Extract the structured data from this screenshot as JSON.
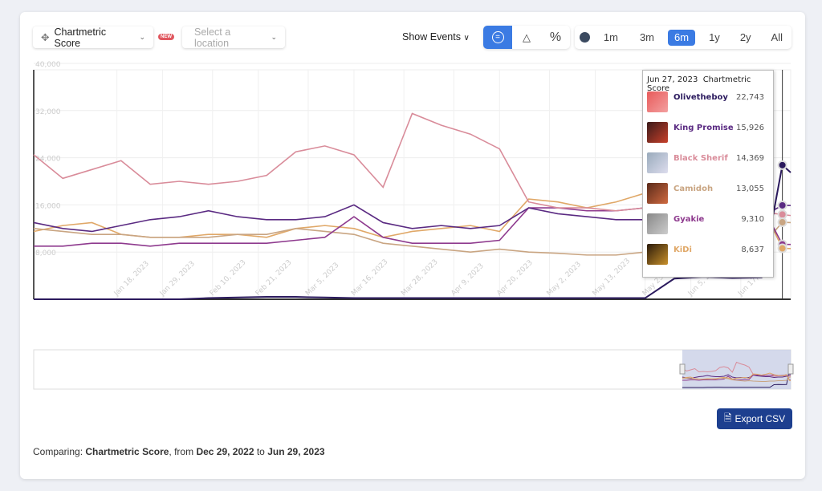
{
  "toolbar": {
    "metric_label": "Chartmetric Score",
    "new_badge": "NEW",
    "location_placeholder": "Select a location",
    "show_events": "Show Events",
    "modes": [
      "=",
      "△",
      "%"
    ],
    "ranges": [
      "1m",
      "3m",
      "6m",
      "1y",
      "2y",
      "All"
    ],
    "active_range": "6m",
    "active_mode": "equal-icon"
  },
  "tooltip": {
    "date": "Jun 27, 2023",
    "metric": "Chartmetric Score",
    "rows": [
      {
        "name": "Olivetheboy",
        "value": "22,743",
        "color": "#2b1a5e"
      },
      {
        "name": "King Promise",
        "value": "15,926",
        "color": "#5a2a82"
      },
      {
        "name": "Black Sherif",
        "value": "14,369",
        "color": "#d98c9a"
      },
      {
        "name": "Camidoh",
        "value": "13,055",
        "color": "#c9a582"
      },
      {
        "name": "Gyakie",
        "value": "9,310",
        "color": "#8e3a8e"
      },
      {
        "name": "KiDi",
        "value": "8,637",
        "color": "#e0a868"
      }
    ]
  },
  "export_label": "Export CSV",
  "footer": {
    "prefix": "Comparing: ",
    "metric": "Chartmetric Score",
    "from_word": ", from ",
    "from": "Dec 29, 2022",
    "to_word": " to ",
    "to": "Jun 29, 2023"
  },
  "chart_data": {
    "type": "line",
    "ylim": [
      0,
      40000
    ],
    "grid": true,
    "yticks": [
      "8,000",
      "16,000",
      "24,000",
      "32,000",
      "40,000"
    ],
    "ytick_values": [
      8000,
      16000,
      24000,
      32000,
      40000
    ],
    "xlim": [
      "2022-12-29",
      "2023-06-29"
    ],
    "xticks": [
      "Jan 18, 2023",
      "Jan 29, 2023",
      "Feb 10, 2023",
      "Feb 21, 2023",
      "Mar 5, 2023",
      "Mar 16, 2023",
      "Mar 28, 2023",
      "Apr 9, 2023",
      "Apr 20, 2023",
      "May 2, 2023",
      "May 13, 2023",
      "May 25, 2023",
      "Jun 5, 2023",
      "Jun 17, 2023"
    ],
    "xtick_dates": [
      "2023-01-18",
      "2023-01-29",
      "2023-02-10",
      "2023-02-21",
      "2023-03-05",
      "2023-03-16",
      "2023-03-28",
      "2023-04-09",
      "2023-04-20",
      "2023-05-02",
      "2023-05-13",
      "2023-05-25",
      "2023-06-05",
      "2023-06-17"
    ],
    "x": [
      "2022-12-29",
      "2023-01-05",
      "2023-01-12",
      "2023-01-19",
      "2023-01-26",
      "2023-02-02",
      "2023-02-09",
      "2023-02-16",
      "2023-02-23",
      "2023-03-02",
      "2023-03-09",
      "2023-03-16",
      "2023-03-23",
      "2023-03-30",
      "2023-04-06",
      "2023-04-13",
      "2023-04-20",
      "2023-04-27",
      "2023-05-04",
      "2023-05-11",
      "2023-05-18",
      "2023-05-25",
      "2023-06-01",
      "2023-06-08",
      "2023-06-15",
      "2023-06-22",
      "2023-06-27",
      "2023-06-29"
    ],
    "series": [
      {
        "name": "Olivetheboy",
        "color": "#2b1a5e",
        "values": [
          0,
          0,
          0,
          0,
          0,
          0,
          200,
          300,
          400,
          400,
          300,
          200,
          200,
          200,
          200,
          200,
          200,
          200,
          200,
          200,
          200,
          200,
          3500,
          3800,
          3600,
          3700,
          22743,
          21500
        ]
      },
      {
        "name": "Black Sherif",
        "color": "#d98c9a",
        "values": [
          24500,
          20500,
          22000,
          23500,
          19500,
          20000,
          19500,
          20000,
          21000,
          25000,
          26000,
          24500,
          19000,
          31500,
          29500,
          28000,
          25500,
          16500,
          15500,
          15500,
          15000,
          15500,
          14000,
          14500,
          14500,
          14800,
          14369,
          14200
        ]
      },
      {
        "name": "King Promise",
        "color": "#5a2a82",
        "values": [
          13000,
          12000,
          11500,
          12500,
          13500,
          14000,
          15000,
          14000,
          13500,
          13500,
          14000,
          16000,
          13000,
          12000,
          12500,
          12000,
          12500,
          15500,
          14500,
          14000,
          13500,
          13500,
          12500,
          13000,
          13000,
          14000,
          15926,
          15900
        ]
      },
      {
        "name": "Gyakie",
        "color": "#8e3a8e",
        "values": [
          9000,
          9000,
          9500,
          9500,
          9000,
          9500,
          9500,
          9500,
          9500,
          10000,
          10500,
          14000,
          10500,
          9500,
          9500,
          9500,
          10000,
          15500,
          15500,
          15000,
          15000,
          15500,
          15500,
          15000,
          15000,
          16000,
          9310,
          9300
        ]
      },
      {
        "name": "Camidoh",
        "color": "#c9a582",
        "values": [
          12000,
          11500,
          11000,
          11000,
          10500,
          10500,
          10500,
          11000,
          11000,
          12000,
          11500,
          11000,
          9500,
          9000,
          8500,
          8000,
          8500,
          8000,
          7800,
          7500,
          7500,
          8000,
          8000,
          8500,
          8500,
          9000,
          13055,
          13000
        ]
      },
      {
        "name": "KiDi",
        "color": "#e0a868",
        "values": [
          11500,
          12500,
          13000,
          11000,
          10500,
          10500,
          11000,
          11000,
          10500,
          12000,
          12500,
          12000,
          10500,
          11500,
          12000,
          12500,
          11500,
          17000,
          16500,
          15500,
          16500,
          18000,
          16000,
          15000,
          14500,
          16000,
          8637,
          8600
        ]
      }
    ],
    "crosshair_date": "2023-06-27"
  }
}
